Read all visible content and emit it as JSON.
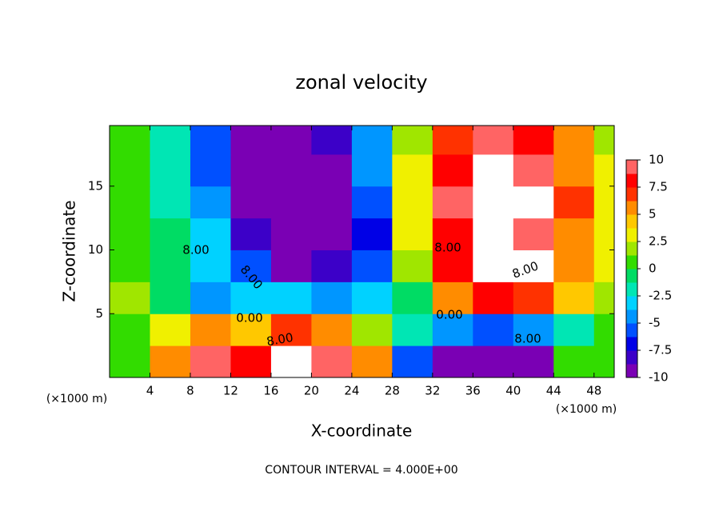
{
  "chart_data": {
    "type": "contour",
    "title": "zonal velocity",
    "x_label": "X-coordinate",
    "y_label": "Z-coordinate",
    "x_unit": "(×1000 m)",
    "y_unit": "(×1000 m)",
    "footer": "CONTOUR INTERVAL = 4.000E+00",
    "xlim": [
      0,
      50
    ],
    "ylim": [
      0,
      19.75
    ],
    "xticks": [
      4,
      8,
      12,
      16,
      20,
      24,
      28,
      32,
      36,
      40,
      44,
      48
    ],
    "yticks": [
      5,
      10,
      15
    ],
    "x_edges": [
      0,
      4,
      8,
      12,
      16,
      20,
      24,
      28,
      32,
      36,
      40,
      44,
      48,
      50
    ],
    "z_edges": [
      0,
      2.5,
      5,
      7.5,
      10,
      12.5,
      15,
      17.5,
      19.75
    ],
    "values": [
      [
        1,
        6,
        9,
        8,
        10,
        9,
        5,
        -6,
        -9,
        -10,
        -9,
        0,
        1
      ],
      [
        0,
        3,
        5,
        4,
        7,
        5,
        2,
        -2,
        -5,
        -6,
        -5,
        -2,
        0
      ],
      [
        2,
        -1,
        -4,
        -3,
        -3,
        -5,
        -3,
        -1,
        5,
        8,
        7,
        4,
        2
      ],
      [
        1,
        -1,
        -3,
        -6,
        -9,
        -8,
        -6,
        2,
        8,
        10,
        10,
        6,
        3
      ],
      [
        1,
        -1,
        -3,
        -8,
        -10,
        -10,
        -7,
        3,
        8,
        10,
        9,
        6,
        3
      ],
      [
        1,
        -2,
        -5,
        -9,
        -10,
        -10,
        -6,
        3,
        9,
        10,
        10,
        7,
        3
      ],
      [
        1,
        -2,
        -6,
        -10,
        -10,
        -9,
        -5,
        3,
        8,
        10,
        9,
        6,
        3
      ],
      [
        1,
        -2,
        -6,
        -10,
        -10,
        -8,
        -4,
        2,
        7,
        9,
        8,
        5,
        2
      ]
    ],
    "colorbar_lim": [
      -10,
      10
    ],
    "colorbar_ticks": [
      10,
      7.5,
      5,
      2.5,
      0,
      -2.5,
      -5,
      -7.5,
      -10
    ],
    "colors": [
      "#7a00b4",
      "#3c00c8",
      "#0000e6",
      "#0050ff",
      "#0096ff",
      "#00d2ff",
      "#00e6b4",
      "#00dc64",
      "#32dc00",
      "#a0e600",
      "#f0f000",
      "#ffc800",
      "#ff8c00",
      "#ff3200",
      "#ff0000",
      "#ff6464"
    ],
    "over_color": "#ffffff",
    "under_color": "#ffffff",
    "contour_labels": [
      "8.00",
      "8.00",
      "8.00",
      "8.00",
      "0.00",
      "0.00",
      "8.00",
      "8.00"
    ]
  }
}
